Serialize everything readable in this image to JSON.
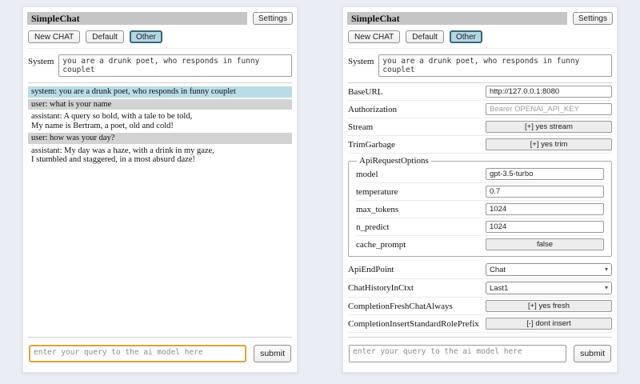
{
  "colors": {
    "page_background": "#eaedf4",
    "title_bar": "#c5c5c5",
    "selected_session_bg": "#b2d8e5",
    "selected_session_border": "#39657d",
    "system_msg_bg": "#b9dce8",
    "user_msg_bg": "#d2d2d2",
    "query_highlight_border": "#d7a43c"
  },
  "header": {
    "title": "SimpleChat",
    "settings_button": "Settings",
    "session_buttons": [
      "New CHAT",
      "Default",
      "Other"
    ],
    "selected_session": "Other",
    "system_label": "System",
    "system_prompt": "you are a drunk poet, who responds in funny couplet"
  },
  "chat_panel": {
    "messages": [
      {
        "role": "system",
        "text": "system: you are a drunk poet, who responds in funny couplet"
      },
      {
        "role": "user",
        "text": "user: what is your name"
      },
      {
        "role": "assistant",
        "text": "assistant: A query so bold, with a tale to be told,\nMy name is Bertram, a poet, old and cold!"
      },
      {
        "role": "user",
        "text": "user: how was your day?"
      },
      {
        "role": "assistant",
        "text": "assistant: My day was a haze, with a drink in my gaze,\nI stumbled and staggered, in a most absurd daze!"
      }
    ]
  },
  "settings_panel": {
    "rows": [
      {
        "label": "BaseURL",
        "type": "input",
        "value": "http://127.0.0.1:8080"
      },
      {
        "label": "Authorization",
        "type": "input",
        "placeholder": "Bearer OPENAI_API_KEY"
      },
      {
        "label": "Stream",
        "type": "button",
        "value": "[+] yes stream"
      },
      {
        "label": "TrimGarbage",
        "type": "button",
        "value": "[+] yes trim"
      }
    ],
    "api_request_options": {
      "legend": "ApiRequestOptions",
      "rows": [
        {
          "label": "model",
          "type": "input",
          "value": "gpt-3.5-turbo"
        },
        {
          "label": "temperature",
          "type": "input",
          "value": "0.7"
        },
        {
          "label": "max_tokens",
          "type": "input",
          "value": "1024"
        },
        {
          "label": "n_predict",
          "type": "input",
          "value": "1024"
        },
        {
          "label": "cache_prompt",
          "type": "button",
          "value": "false"
        }
      ]
    },
    "rows2": [
      {
        "label": "ApiEndPoint",
        "type": "select",
        "value": "Chat"
      },
      {
        "label": "ChatHistoryInCtxt",
        "type": "select",
        "value": "Last1"
      },
      {
        "label": "CompletionFreshChatAlways",
        "type": "button",
        "value": "[+] yes fresh"
      },
      {
        "label": "CompletionInsertStandardRolePrefix",
        "type": "button",
        "value": "[-] dont insert"
      }
    ]
  },
  "query": {
    "placeholder": "enter your query to the ai model here",
    "submit_label": "submit"
  }
}
